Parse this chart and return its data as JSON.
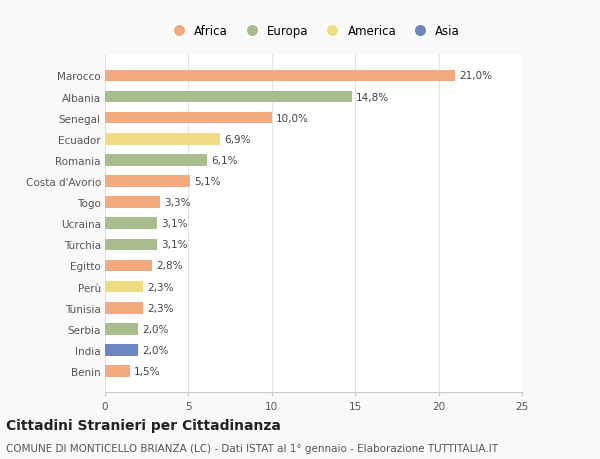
{
  "countries": [
    "Marocco",
    "Albania",
    "Senegal",
    "Ecuador",
    "Romania",
    "Costa d'Avorio",
    "Togo",
    "Ucraina",
    "Turchia",
    "Egitto",
    "Perù",
    "Tunisia",
    "Serbia",
    "India",
    "Benin"
  ],
  "values": [
    21.0,
    14.8,
    10.0,
    6.9,
    6.1,
    5.1,
    3.3,
    3.1,
    3.1,
    2.8,
    2.3,
    2.3,
    2.0,
    2.0,
    1.5
  ],
  "labels": [
    "21,0%",
    "14,8%",
    "10,0%",
    "6,9%",
    "6,1%",
    "5,1%",
    "3,3%",
    "3,1%",
    "3,1%",
    "2,8%",
    "2,3%",
    "2,3%",
    "2,0%",
    "2,0%",
    "1,5%"
  ],
  "continents": [
    "Africa",
    "Europa",
    "Africa",
    "America",
    "Europa",
    "Africa",
    "Africa",
    "Europa",
    "Europa",
    "Africa",
    "America",
    "Africa",
    "Europa",
    "Asia",
    "Africa"
  ],
  "colors": {
    "Africa": "#F2AA7E",
    "Europa": "#A8BC8C",
    "America": "#F0DC82",
    "Asia": "#6B86C2"
  },
  "xlim": [
    0,
    25
  ],
  "xticks": [
    0,
    5,
    10,
    15,
    20,
    25
  ],
  "title": "Cittadini Stranieri per Cittadinanza",
  "subtitle": "COMUNE DI MONTICELLO BRIANZA (LC) - Dati ISTAT al 1° gennaio - Elaborazione TUTTITALIA.IT",
  "background_color": "#f9f9f9",
  "bar_background": "#ffffff",
  "title_fontsize": 10,
  "subtitle_fontsize": 7.5,
  "label_fontsize": 7.5,
  "tick_fontsize": 7.5,
  "legend_fontsize": 8.5
}
